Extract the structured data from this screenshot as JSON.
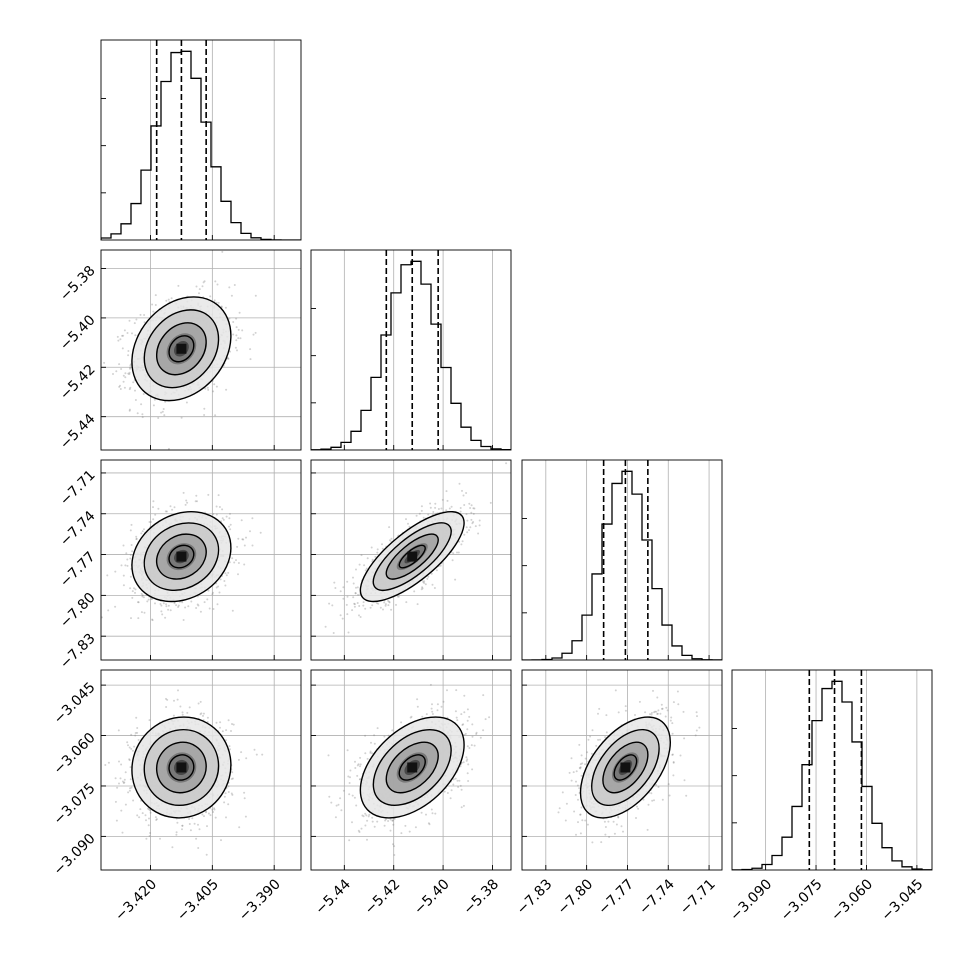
{
  "chart_data": {
    "type": "corner",
    "parameters": [
      {
        "axis_range": [
          -3.432,
          -3.3835
        ],
        "ticks": [
          -3.42,
          -3.405,
          -3.39
        ],
        "tick_labels": [
          "−3.420",
          "−3.405",
          "−3.390"
        ],
        "mean": -3.4125,
        "std": 0.006,
        "quantiles": [
          -3.4185,
          -3.4125,
          -3.4065
        ]
      },
      {
        "axis_range": [
          -5.4535,
          -5.3725
        ],
        "ticks": [
          -5.44,
          -5.42,
          -5.4,
          -5.38
        ],
        "tick_labels": [
          "−5.44",
          "−5.42",
          "−5.40",
          "−5.38"
        ],
        "mean": -5.4125,
        "std": 0.0105,
        "quantiles": [
          -5.423,
          -5.4125,
          -5.402
        ]
      },
      {
        "axis_range": [
          -7.8475,
          -7.7005
        ],
        "ticks": [
          -7.83,
          -7.8,
          -7.77,
          -7.74,
          -7.71
        ],
        "tick_labels": [
          "−7.83",
          "−7.80",
          "−7.77",
          "−7.74",
          "−7.71"
        ],
        "mean": -7.7715,
        "std": 0.0165,
        "quantiles": [
          -7.7875,
          -7.7715,
          -7.755
        ]
      },
      {
        "axis_range": [
          -3.1,
          -3.0405
        ],
        "ticks": [
          -3.09,
          -3.075,
          -3.06,
          -3.045
        ],
        "tick_labels": [
          "−3.090",
          "−3.075",
          "−3.060",
          "−3.045"
        ],
        "mean": -3.0695,
        "std": 0.0075,
        "quantiles": [
          -3.077,
          -3.0695,
          -3.0615
        ]
      }
    ],
    "correlations": [
      [
        1,
        0.25,
        0.2,
        0.05
      ],
      [
        0.25,
        1,
        0.75,
        0.45
      ],
      [
        0.2,
        0.75,
        1,
        0.5
      ],
      [
        0.05,
        0.45,
        0.5,
        1
      ]
    ],
    "contour_levels_sigma": [
      0.5,
      1,
      1.5,
      2
    ],
    "grid": true,
    "colors": {
      "samples": "#7f7f7f",
      "lines": "#000000",
      "grid": "#b0b0b0"
    }
  }
}
